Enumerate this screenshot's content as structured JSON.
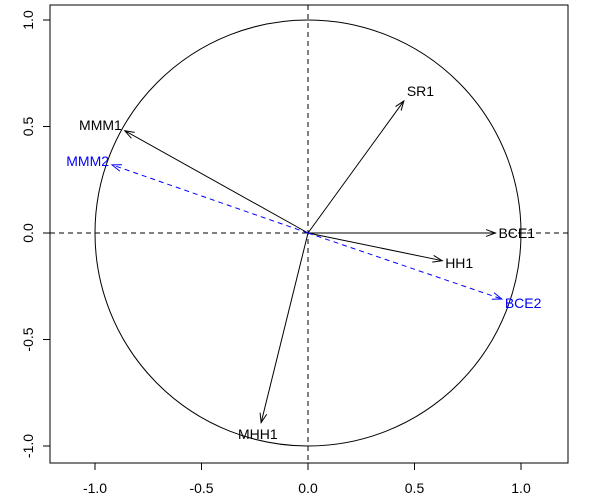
{
  "chart_data": {
    "type": "scatter",
    "title": "",
    "xlabel": "",
    "ylabel": "",
    "xlim": [
      -1.2,
      1.2
    ],
    "ylim": [
      -1.1,
      1.1
    ],
    "x_ticks": [
      -1.0,
      -0.5,
      0.0,
      0.5,
      1.0
    ],
    "y_ticks": [
      -1.0,
      -0.5,
      0.0,
      0.5,
      1.0
    ],
    "x_tick_labels": [
      "-1.0",
      "-0.5",
      "0.0",
      "0.5",
      "1.0"
    ],
    "y_tick_labels": [
      "-1.0",
      "-0.5",
      "0.0",
      "0.5",
      "1.0"
    ],
    "unit_circle": true,
    "reference_lines": {
      "x": 0,
      "y": 0,
      "style": "dashed"
    },
    "series": [
      {
        "color": "#000000",
        "line_style": "solid",
        "vectors": [
          {
            "label": "SR1",
            "x": 0.45,
            "y": 0.62
          },
          {
            "label": "MMM1",
            "x": -0.86,
            "y": 0.48
          },
          {
            "label": "BCE1",
            "x": 0.88,
            "y": 0.0
          },
          {
            "label": "HH1",
            "x": 0.63,
            "y": -0.13
          },
          {
            "label": "MHH1",
            "x": -0.22,
            "y": -0.89
          }
        ]
      },
      {
        "color": "#0000ff",
        "line_style": "dashed",
        "vectors": [
          {
            "label": "MMM2",
            "x": -0.92,
            "y": 0.32
          },
          {
            "label": "BCE2",
            "x": 0.91,
            "y": -0.31
          }
        ]
      }
    ]
  }
}
